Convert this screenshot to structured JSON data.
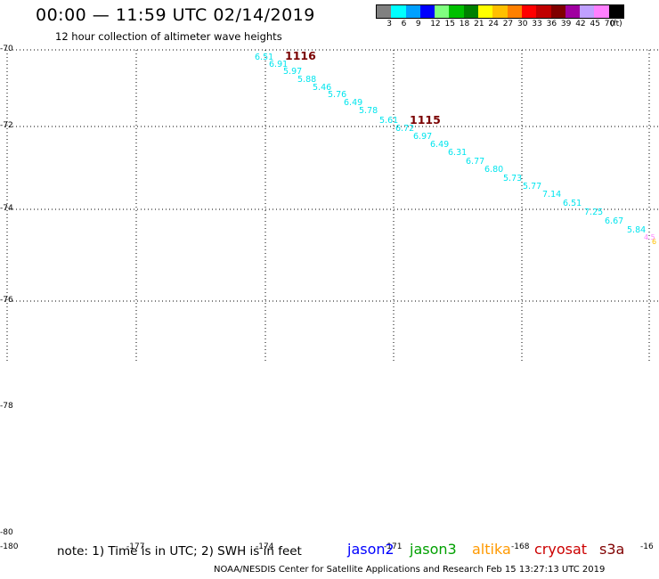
{
  "header": {
    "title": "00:00 — 11:59 UTC 02/14/2019",
    "subtitle": "12 hour collection of altimeter wave heights"
  },
  "legend": {
    "unit": "(ft)",
    "colors": [
      "#808080",
      "#00ffff",
      "#00a0ff",
      "#0000ff",
      "#80ff80",
      "#00c000",
      "#008000",
      "#ffff00",
      "#ffc000",
      "#ff8000",
      "#ff0000",
      "#c00000",
      "#800000",
      "#a000a0",
      "#c0a0ff",
      "#ff80ff",
      "#000000"
    ],
    "labels": [
      "3",
      "6",
      "9",
      "12",
      "15",
      "18",
      "21",
      "24",
      "27",
      "30",
      "33",
      "36",
      "39",
      "42",
      "45",
      "70"
    ]
  },
  "axes": {
    "lat_labels": [
      "-70",
      "-72",
      "-74",
      "-76",
      "-78",
      "-80"
    ],
    "lon_labels": [
      "-180",
      "-177",
      "-174",
      "-171",
      "-168",
      "-16"
    ]
  },
  "passes": [
    {
      "id": "1116"
    },
    {
      "id": "1115"
    }
  ],
  "swh_values": [
    "6.51",
    "6.91",
    "5.97",
    "5.88",
    "5.46",
    "5.76",
    "6.49",
    "5.78",
    "5.61",
    "6.72",
    "6.97",
    "6.49",
    "6.31",
    "6.77",
    "6.80",
    "5.73",
    "5.77",
    "7.14",
    "6.51",
    "7.25",
    "6.67",
    "5.84"
  ],
  "edge_values": [
    "4.5",
    "6"
  ],
  "footer": {
    "note": "note:  1) Time is in UTC;  2) SWH is in feet",
    "satellites": [
      {
        "name": "jason2",
        "color": "#0000ff"
      },
      {
        "name": "jason3",
        "color": "#00a000"
      },
      {
        "name": "altika",
        "color": "#ff9900"
      },
      {
        "name": "cryosat",
        "color": "#cc0000"
      },
      {
        "name": "s3a",
        "color": "#800000"
      }
    ],
    "credit": "NOAA/NESDIS Center for Satellite Applications and Research    Feb 15 13:27:13 UTC 2019"
  },
  "colors": {
    "track_color": "#00e5ee",
    "pass_label_color": "#7a0000"
  }
}
